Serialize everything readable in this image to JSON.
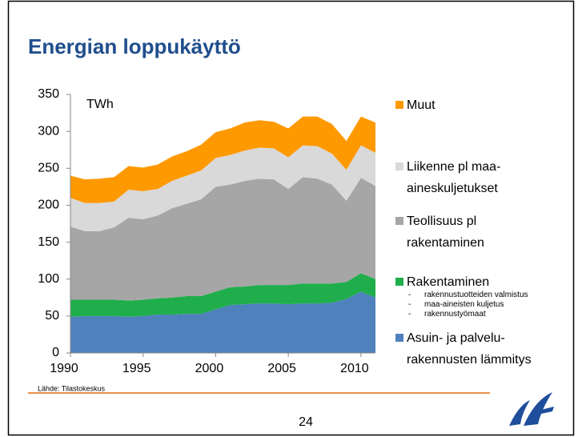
{
  "chart_data": {
    "type": "stacked_area",
    "title": "Energian loppukäyttö",
    "unit_label": "TWh",
    "source": "Lähde: Tilastokeskus",
    "page_number": "24",
    "x": [
      1990,
      1991,
      1992,
      1993,
      1994,
      1995,
      1996,
      1997,
      1998,
      1999,
      2000,
      2001,
      2002,
      2003,
      2004,
      2005,
      2006,
      2007,
      2008,
      2009,
      2010,
      2011
    ],
    "xlim": [
      1990,
      2011
    ],
    "xticks": [
      1990,
      1995,
      2000,
      2005,
      2010
    ],
    "ylim": [
      0,
      350
    ],
    "yticks": [
      0,
      50,
      100,
      150,
      200,
      250,
      300,
      350
    ],
    "series": [
      {
        "name": "Asuin- ja palvelu-\nrakennusten lämmitys",
        "color": "#4f81bd",
        "values": [
          49,
          50,
          50,
          50,
          49,
          50,
          52,
          52,
          53,
          53,
          59,
          65,
          66,
          67,
          67,
          66,
          67,
          67,
          68,
          73,
          83,
          75
        ]
      },
      {
        "name": "Rakentaminen",
        "color": "#1fae4b",
        "values": [
          23,
          22,
          22,
          22,
          22,
          22,
          22,
          23,
          24,
          24,
          24,
          24,
          24,
          25,
          25,
          26,
          27,
          27,
          26,
          23,
          25,
          25
        ],
        "notes": [
          "rakennustuotteiden valmistus",
          "maa-aineisten kuljetus",
          "rakennustyömaat"
        ]
      },
      {
        "name": "Teollisuus pl\nrakentaminen",
        "color": "#a6a6a6",
        "values": [
          99,
          93,
          93,
          98,
          112,
          109,
          112,
          121,
          125,
          131,
          142,
          139,
          143,
          144,
          143,
          130,
          144,
          142,
          134,
          110,
          129,
          126
        ]
      },
      {
        "name": "Liikenne pl maa-\naineskuljetukset",
        "color": "#d9d9d9",
        "values": [
          39,
          38,
          38,
          35,
          38,
          38,
          36,
          37,
          38,
          39,
          39,
          40,
          41,
          42,
          42,
          43,
          43,
          44,
          42,
          42,
          44,
          45
        ]
      },
      {
        "name": "Muut",
        "color": "#ff9900",
        "values": [
          30,
          32,
          33,
          33,
          32,
          32,
          33,
          33,
          33,
          35,
          35,
          36,
          38,
          37,
          36,
          39,
          39,
          40,
          40,
          39,
          39,
          41
        ]
      }
    ]
  }
}
